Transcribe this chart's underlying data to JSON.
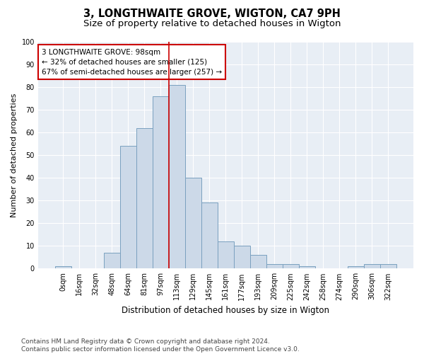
{
  "title": "3, LONGTHWAITE GROVE, WIGTON, CA7 9PH",
  "subtitle": "Size of property relative to detached houses in Wigton",
  "xlabel": "Distribution of detached houses by size in Wigton",
  "ylabel": "Number of detached properties",
  "footer_line1": "Contains HM Land Registry data © Crown copyright and database right 2024.",
  "footer_line2": "Contains public sector information licensed under the Open Government Licence v3.0.",
  "bar_labels": [
    "0sqm",
    "16sqm",
    "32sqm",
    "48sqm",
    "64sqm",
    "81sqm",
    "97sqm",
    "113sqm",
    "129sqm",
    "145sqm",
    "161sqm",
    "177sqm",
    "193sqm",
    "209sqm",
    "225sqm",
    "242sqm",
    "258sqm",
    "274sqm",
    "290sqm",
    "306sqm",
    "322sqm"
  ],
  "bar_values": [
    1,
    0,
    0,
    7,
    54,
    62,
    76,
    81,
    40,
    29,
    12,
    10,
    6,
    2,
    2,
    1,
    0,
    0,
    1,
    2,
    2
  ],
  "bar_color": "#ccd9e8",
  "bar_edge_color": "#7aa0bf",
  "vline_x_index": 6,
  "vline_color": "#cc0000",
  "annotation_line1": "3 LONGTHWAITE GROVE: 98sqm",
  "annotation_line2": "← 32% of detached houses are smaller (125)",
  "annotation_line3": "67% of semi-detached houses are larger (257) →",
  "annotation_box_edge": "#cc0000",
  "ylim": [
    0,
    100
  ],
  "background_color": "#ffffff",
  "plot_bg_color": "#e8eef5",
  "title_fontsize": 10.5,
  "subtitle_fontsize": 9.5,
  "xlabel_fontsize": 8.5,
  "ylabel_fontsize": 8,
  "tick_fontsize": 7,
  "annotation_fontsize": 7.5,
  "footer_fontsize": 6.5
}
